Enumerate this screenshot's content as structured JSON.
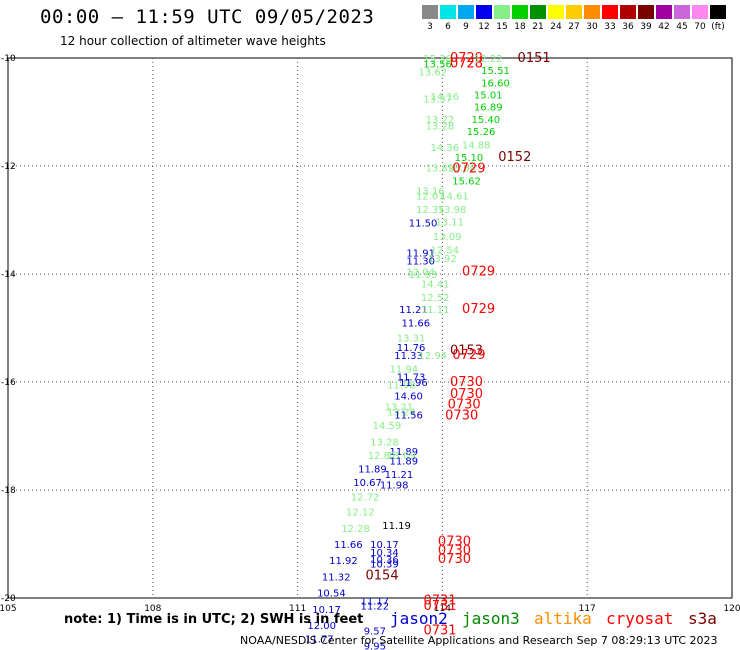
{
  "header": {
    "title": "00:00 – 11:59 UTC 09/05/2023",
    "subtitle": "12 hour collection of altimeter wave heights"
  },
  "legend": {
    "items": [
      {
        "label": "3",
        "color": "#888888"
      },
      {
        "label": "6",
        "color": "#00e5e5"
      },
      {
        "label": "9",
        "color": "#00a8ee"
      },
      {
        "label": "12",
        "color": "#0000ee"
      },
      {
        "label": "15",
        "color": "#88ee88"
      },
      {
        "label": "18",
        "color": "#00d000"
      },
      {
        "label": "21",
        "color": "#009000"
      },
      {
        "label": "24",
        "color": "#ffff00"
      },
      {
        "label": "27",
        "color": "#ffcc00"
      },
      {
        "label": "30",
        "color": "#ff8c00"
      },
      {
        "label": "33",
        "color": "#ff0000"
      },
      {
        "label": "36",
        "color": "#b00000"
      },
      {
        "label": "39",
        "color": "#7a0000"
      },
      {
        "label": "42",
        "color": "#a000a0"
      },
      {
        "label": "45",
        "color": "#cc66dd"
      },
      {
        "label": "70",
        "color": "#ff88ee"
      },
      {
        "label": "(ft)",
        "color": "#000000"
      }
    ]
  },
  "footer": {
    "note": "note: 1) Time is in UTC; 2) SWH is in feet",
    "credit": "NOAA/NESDIS Center for Satellite Applications and Research   Sep  7 08:29:13 UTC 2023",
    "satellites": [
      {
        "name": "jason2",
        "color": "#0000cc"
      },
      {
        "name": "jason3",
        "color": "#008800"
      },
      {
        "name": "altika",
        "color": "#ff8c00"
      },
      {
        "name": "cryosat",
        "color": "#ff0000"
      },
      {
        "name": "s3a",
        "color": "#7a0000"
      }
    ]
  },
  "chart_data": {
    "type": "scatter",
    "xlim": [
      105,
      120
    ],
    "ylim": [
      -20,
      -10
    ],
    "x_ticks": [
      "105",
      "108",
      "111",
      "114",
      "117",
      "120"
    ],
    "y_ticks": [
      "-10",
      "-12",
      "-14",
      "-16",
      "-18",
      "-20"
    ],
    "grid": true,
    "points": [
      {
        "x": 113.9,
        "y": -10.0,
        "label": "15.36",
        "color": "#88ee88"
      },
      {
        "x": 113.9,
        "y": -10.1,
        "label": "13.56",
        "color": "#00d000"
      },
      {
        "x": 113.8,
        "y": -10.25,
        "label": "13.62",
        "color": "#88ee88"
      },
      {
        "x": 114.5,
        "y": -10.0,
        "label": "0729",
        "color": "#ff0000"
      },
      {
        "x": 114.5,
        "y": -10.1,
        "label": "0728",
        "color": "#ff0000"
      },
      {
        "x": 114.95,
        "y": -10.0,
        "label": "12.22",
        "color": "#88ee88"
      },
      {
        "x": 115.9,
        "y": -10.0,
        "label": "0151",
        "color": "#7a0000"
      },
      {
        "x": 115.1,
        "y": -10.22,
        "label": "15.51",
        "color": "#00d000"
      },
      {
        "x": 115.1,
        "y": -10.45,
        "label": "16.60",
        "color": "#00d000"
      },
      {
        "x": 114.05,
        "y": -10.7,
        "label": "14.16",
        "color": "#88ee88"
      },
      {
        "x": 113.9,
        "y": -10.75,
        "label": "13.37",
        "color": "#88ee88"
      },
      {
        "x": 114.95,
        "y": -10.68,
        "label": "15.01",
        "color": "#00d000"
      },
      {
        "x": 114.95,
        "y": -10.9,
        "label": "16.89",
        "color": "#00d000"
      },
      {
        "x": 114.9,
        "y": -11.13,
        "label": "15.40",
        "color": "#00d000"
      },
      {
        "x": 113.95,
        "y": -11.13,
        "label": "13.22",
        "color": "#88ee88"
      },
      {
        "x": 113.95,
        "y": -11.25,
        "label": "13.28",
        "color": "#88ee88"
      },
      {
        "x": 114.8,
        "y": -11.35,
        "label": "15.26",
        "color": "#00d000"
      },
      {
        "x": 114.05,
        "y": -11.65,
        "label": "14.36",
        "color": "#88ee88"
      },
      {
        "x": 114.7,
        "y": -11.6,
        "label": "14.88",
        "color": "#88ee88"
      },
      {
        "x": 114.55,
        "y": -11.83,
        "label": "15.10",
        "color": "#00d000"
      },
      {
        "x": 115.5,
        "y": -11.83,
        "label": "0152",
        "color": "#7a0000"
      },
      {
        "x": 113.95,
        "y": -12.03,
        "label": "13.89",
        "color": "#88ee88"
      },
      {
        "x": 114.4,
        "y": -12.03,
        "label": "13.68",
        "color": "#88ee88"
      },
      {
        "x": 114.55,
        "y": -12.05,
        "label": "0729",
        "color": "#ff0000"
      },
      {
        "x": 114.5,
        "y": -12.27,
        "label": "15.62",
        "color": "#00d000"
      },
      {
        "x": 113.75,
        "y": -12.45,
        "label": "13.16",
        "color": "#88ee88"
      },
      {
        "x": 113.75,
        "y": -12.55,
        "label": "12.07",
        "color": "#88ee88"
      },
      {
        "x": 114.25,
        "y": -12.55,
        "label": "14.61",
        "color": "#88ee88"
      },
      {
        "x": 113.75,
        "y": -12.8,
        "label": "12.35",
        "color": "#88ee88"
      },
      {
        "x": 114.2,
        "y": -12.8,
        "label": "13.98",
        "color": "#88ee88"
      },
      {
        "x": 113.6,
        "y": -13.05,
        "label": "11.50",
        "color": "#0000cc"
      },
      {
        "x": 114.15,
        "y": -13.03,
        "label": "13.11",
        "color": "#88ee88"
      },
      {
        "x": 114.1,
        "y": -13.3,
        "label": "13.09",
        "color": "#88ee88"
      },
      {
        "x": 114.05,
        "y": -13.55,
        "label": "12.54",
        "color": "#88ee88"
      },
      {
        "x": 113.55,
        "y": -13.6,
        "label": "11.91",
        "color": "#0000cc"
      },
      {
        "x": 114.0,
        "y": -13.7,
        "label": "13.92",
        "color": "#88ee88"
      },
      {
        "x": 113.55,
        "y": -13.75,
        "label": "11.30",
        "color": "#0000cc"
      },
      {
        "x": 113.55,
        "y": -13.95,
        "label": "12.04",
        "color": "#88ee88"
      },
      {
        "x": 113.6,
        "y": -14.0,
        "label": "11.93",
        "color": "#88ee88"
      },
      {
        "x": 114.75,
        "y": -13.95,
        "label": "0729",
        "color": "#ff0000"
      },
      {
        "x": 113.85,
        "y": -14.18,
        "label": "14.41",
        "color": "#88ee88"
      },
      {
        "x": 113.85,
        "y": -14.43,
        "label": "12.52",
        "color": "#88ee88"
      },
      {
        "x": 113.4,
        "y": -14.65,
        "label": "11.21",
        "color": "#0000cc"
      },
      {
        "x": 113.85,
        "y": -14.65,
        "label": "11.11",
        "color": "#88ee88"
      },
      {
        "x": 114.75,
        "y": -14.65,
        "label": "0729",
        "color": "#ff0000"
      },
      {
        "x": 113.45,
        "y": -14.9,
        "label": "11.66",
        "color": "#0000cc"
      },
      {
        "x": 113.35,
        "y": -15.18,
        "label": "13.31",
        "color": "#88ee88"
      },
      {
        "x": 113.35,
        "y": -15.35,
        "label": "11.76",
        "color": "#0000cc"
      },
      {
        "x": 113.3,
        "y": -15.5,
        "label": "11.33",
        "color": "#0000cc"
      },
      {
        "x": 113.8,
        "y": -15.5,
        "label": "12.94",
        "color": "#88ee88"
      },
      {
        "x": 114.5,
        "y": -15.42,
        "label": "0153",
        "color": "#7a0000"
      },
      {
        "x": 114.55,
        "y": -15.5,
        "label": "0729",
        "color": "#ff0000"
      },
      {
        "x": 113.2,
        "y": -15.75,
        "label": "11.94",
        "color": "#88ee88"
      },
      {
        "x": 113.35,
        "y": -15.9,
        "label": "11.73",
        "color": "#0000cc"
      },
      {
        "x": 113.15,
        "y": -16.05,
        "label": "11.98",
        "color": "#88ee88"
      },
      {
        "x": 113.4,
        "y": -16.0,
        "label": "11.96",
        "color": "#0000cc"
      },
      {
        "x": 113.3,
        "y": -16.25,
        "label": "14.60",
        "color": "#0000cc"
      },
      {
        "x": 114.5,
        "y": -16.0,
        "label": "0730",
        "color": "#ff0000"
      },
      {
        "x": 114.5,
        "y": -16.22,
        "label": "0730",
        "color": "#ff0000"
      },
      {
        "x": 114.45,
        "y": -16.42,
        "label": "0730",
        "color": "#ff0000"
      },
      {
        "x": 114.4,
        "y": -16.62,
        "label": "0730",
        "color": "#ff0000"
      },
      {
        "x": 113.1,
        "y": -16.45,
        "label": "13.21",
        "color": "#88ee88"
      },
      {
        "x": 113.15,
        "y": -16.55,
        "label": "13.24",
        "color": "#88ee88"
      },
      {
        "x": 113.3,
        "y": -16.6,
        "label": "11.56",
        "color": "#0000cc"
      },
      {
        "x": 112.85,
        "y": -16.8,
        "label": "14.59",
        "color": "#88ee88"
      },
      {
        "x": 112.8,
        "y": -17.1,
        "label": "13.28",
        "color": "#88ee88"
      },
      {
        "x": 113.2,
        "y": -17.28,
        "label": "11.89",
        "color": "#0000cc"
      },
      {
        "x": 112.75,
        "y": -17.35,
        "label": "12.81",
        "color": "#88ee88"
      },
      {
        "x": 113.15,
        "y": -17.35,
        "label": "13.09",
        "color": "#88ee88"
      },
      {
        "x": 113.2,
        "y": -17.45,
        "label": "11.89",
        "color": "#0000cc"
      },
      {
        "x": 112.55,
        "y": -17.6,
        "label": "11.89",
        "color": "#0000cc"
      },
      {
        "x": 113.1,
        "y": -17.7,
        "label": "11.21",
        "color": "#0000cc"
      },
      {
        "x": 112.45,
        "y": -17.85,
        "label": "10.67",
        "color": "#0000cc"
      },
      {
        "x": 113.0,
        "y": -17.9,
        "label": "11.98",
        "color": "#0000cc"
      },
      {
        "x": 112.4,
        "y": -18.12,
        "label": "12.72",
        "color": "#88ee88"
      },
      {
        "x": 112.3,
        "y": -18.4,
        "label": "12.12",
        "color": "#88ee88"
      },
      {
        "x": 113.05,
        "y": -18.65,
        "label": "11.19",
        "color": "#000000"
      },
      {
        "x": 112.2,
        "y": -18.7,
        "label": "12.28",
        "color": "#88ee88"
      },
      {
        "x": 112.05,
        "y": -19.0,
        "label": "11.66",
        "color": "#0000cc"
      },
      {
        "x": 112.8,
        "y": -19.0,
        "label": "10.17",
        "color": "#0000cc"
      },
      {
        "x": 114.25,
        "y": -18.95,
        "label": "0730",
        "color": "#ff0000"
      },
      {
        "x": 112.8,
        "y": -19.15,
        "label": "10.34",
        "color": "#0000cc"
      },
      {
        "x": 114.25,
        "y": -19.12,
        "label": "0730",
        "color": "#ff0000"
      },
      {
        "x": 114.25,
        "y": -19.28,
        "label": "0730",
        "color": "#ff0000"
      },
      {
        "x": 112.8,
        "y": -19.28,
        "label": "10.36",
        "color": "#0000cc"
      },
      {
        "x": 112.8,
        "y": -19.36,
        "label": "10.39",
        "color": "#0000cc"
      },
      {
        "x": 111.95,
        "y": -19.3,
        "label": "11.92",
        "color": "#0000cc"
      },
      {
        "x": 111.8,
        "y": -19.6,
        "label": "11.32",
        "color": "#0000cc"
      },
      {
        "x": 112.75,
        "y": -19.58,
        "label": "0154",
        "color": "#7a0000"
      },
      {
        "x": 111.7,
        "y": -19.9,
        "label": "10.54",
        "color": "#0000cc"
      },
      {
        "x": 112.6,
        "y": -20.05,
        "label": "11.17",
        "color": "#0000cc"
      },
      {
        "x": 112.6,
        "y": -20.14,
        "label": "11.22",
        "color": "#0000cc"
      },
      {
        "x": 113.95,
        "y": -20.05,
        "label": "0731",
        "color": "#ff0000"
      },
      {
        "x": 113.95,
        "y": -20.15,
        "label": "0731",
        "color": "#ff0000"
      },
      {
        "x": 111.6,
        "y": -20.2,
        "label": "10.17",
        "color": "#0000cc"
      },
      {
        "x": 111.5,
        "y": -20.5,
        "label": "12.00",
        "color": "#0000cc"
      },
      {
        "x": 112.6,
        "y": -20.6,
        "label": "9.57",
        "color": "#0000cc"
      },
      {
        "x": 113.95,
        "y": -20.6,
        "label": "0731",
        "color": "#ff0000"
      },
      {
        "x": 111.45,
        "y": -20.75,
        "label": "11.77",
        "color": "#0000cc"
      },
      {
        "x": 112.6,
        "y": -20.88,
        "label": "9.95",
        "color": "#0000cc"
      }
    ]
  }
}
